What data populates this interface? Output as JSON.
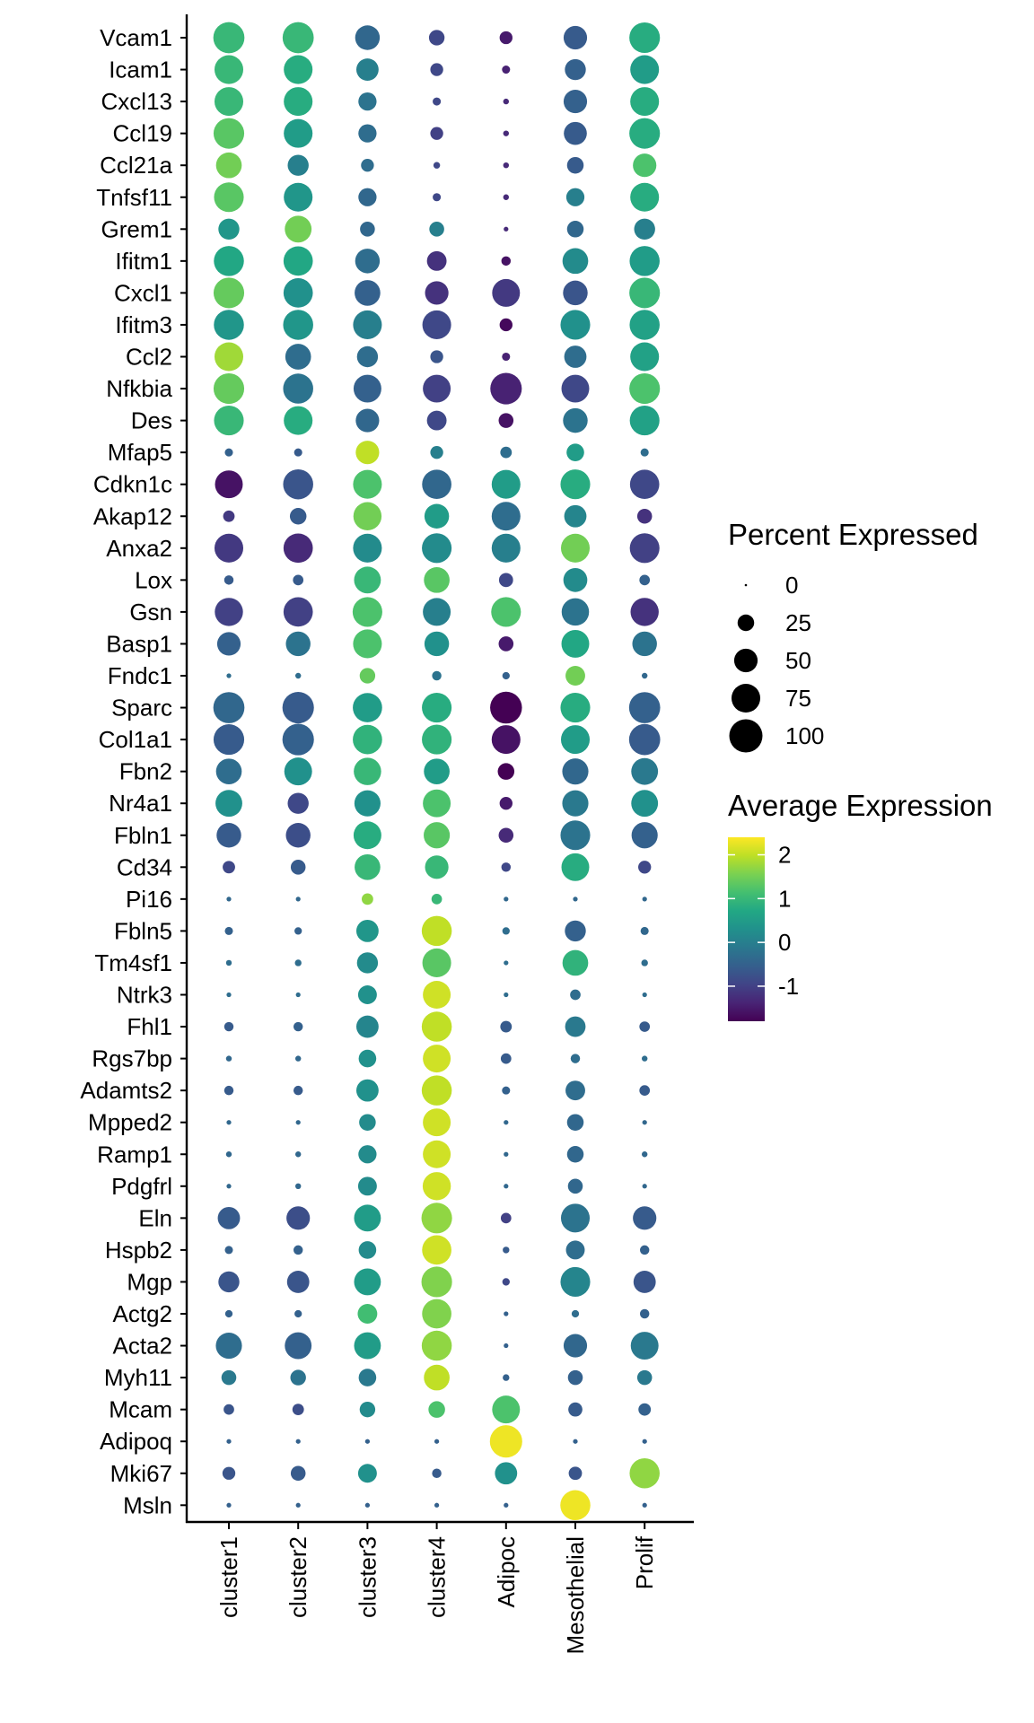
{
  "chart_data": {
    "type": "dotplot",
    "title": "",
    "xlabel": "",
    "ylabel": "",
    "clusters": [
      "cluster1",
      "cluster2",
      "cluster3",
      "cluster4",
      "Adipoc",
      "Mesothelial",
      "Prolif"
    ],
    "genes": [
      "Vcam1",
      "Icam1",
      "Cxcl13",
      "Ccl19",
      "Ccl21a",
      "Tnfsf11",
      "Grem1",
      "Ifitm1",
      "Cxcl1",
      "Ifitm3",
      "Ccl2",
      "Nfkbia",
      "Des",
      "Mfap5",
      "Cdkn1c",
      "Akap12",
      "Anxa2",
      "Lox",
      "Gsn",
      "Basp1",
      "Fndc1",
      "Sparc",
      "Col1a1",
      "Fbn2",
      "Nr4a1",
      "Fbln1",
      "Cd34",
      "Pi16",
      "Fbln5",
      "Tm4sf1",
      "Ntrk3",
      "Fhl1",
      "Rgs7bp",
      "Adamts2",
      "Mpped2",
      "Ramp1",
      "Pdgfrl",
      "Eln",
      "Hspb2",
      "Mgp",
      "Actg2",
      "Acta2",
      "Myh11",
      "Mcam",
      "Adipoq",
      "Mki67",
      "Msln"
    ],
    "percent_expressed": [
      [
        88,
        88,
        55,
        22,
        15,
        50,
        85
      ],
      [
        75,
        75,
        45,
        15,
        6,
        40,
        75
      ],
      [
        75,
        75,
        30,
        6,
        3,
        50,
        75
      ],
      [
        85,
        75,
        30,
        15,
        3,
        48,
        85
      ],
      [
        60,
        40,
        15,
        4,
        3,
        25,
        50
      ],
      [
        80,
        75,
        30,
        6,
        3,
        30,
        75
      ],
      [
        40,
        65,
        20,
        20,
        2,
        25,
        40
      ],
      [
        82,
        78,
        55,
        35,
        8,
        60,
        82
      ],
      [
        85,
        78,
        60,
        50,
        70,
        55,
        85
      ],
      [
        82,
        82,
        75,
        75,
        15,
        80,
        82
      ],
      [
        75,
        60,
        40,
        15,
        6,
        45,
        75
      ],
      [
        85,
        82,
        70,
        70,
        90,
        70,
        85
      ],
      [
        80,
        75,
        50,
        35,
        20,
        55,
        80
      ],
      [
        6,
        6,
        50,
        15,
        12,
        28,
        6
      ],
      [
        70,
        82,
        75,
        78,
        75,
        80,
        78
      ],
      [
        12,
        25,
        72,
        55,
        75,
        45,
        20
      ],
      [
        75,
        78,
        75,
        80,
        75,
        75,
        80
      ],
      [
        8,
        10,
        65,
        60,
        18,
        52,
        10
      ],
      [
        72,
        78,
        80,
        70,
        80,
        68,
        72
      ],
      [
        50,
        55,
        75,
        55,
        20,
        70,
        55
      ],
      [
        2,
        3,
        22,
        8,
        5,
        35,
        3
      ],
      [
        88,
        90,
        78,
        80,
        92,
        80,
        88
      ],
      [
        85,
        90,
        78,
        80,
        75,
        75,
        88
      ],
      [
        60,
        70,
        68,
        60,
        25,
        62,
        65
      ],
      [
        65,
        40,
        62,
        70,
        15,
        62,
        65
      ],
      [
        55,
        55,
        70,
        62,
        20,
        80,
        62
      ],
      [
        14,
        20,
        60,
        50,
        8,
        70,
        15
      ],
      [
        2,
        2,
        12,
        10,
        2,
        2,
        2
      ],
      [
        6,
        5,
        45,
        82,
        5,
        40,
        6
      ],
      [
        3,
        4,
        40,
        75,
        2,
        60,
        4
      ],
      [
        2,
        2,
        32,
        70,
        2,
        10,
        2
      ],
      [
        8,
        8,
        45,
        82,
        12,
        38,
        10
      ],
      [
        3,
        3,
        28,
        70,
        10,
        8,
        3
      ],
      [
        8,
        8,
        45,
        82,
        6,
        35,
        10
      ],
      [
        2,
        2,
        25,
        70,
        2,
        25,
        2
      ],
      [
        3,
        3,
        30,
        70,
        2,
        25,
        3
      ],
      [
        2,
        3,
        32,
        72,
        2,
        20,
        2
      ],
      [
        45,
        50,
        65,
        85,
        10,
        75,
        50
      ],
      [
        6,
        8,
        28,
        78,
        4,
        32,
        8
      ],
      [
        40,
        45,
        65,
        85,
        5,
        80,
        45
      ],
      [
        5,
        5,
        35,
        78,
        2,
        5,
        8
      ],
      [
        62,
        65,
        65,
        82,
        2,
        50,
        70
      ],
      [
        20,
        22,
        28,
        60,
        4,
        20,
        20
      ],
      [
        10,
        12,
        22,
        25,
        70,
        18,
        14
      ],
      [
        2,
        2,
        2,
        2,
        95,
        2,
        2
      ],
      [
        15,
        20,
        32,
        8,
        45,
        16,
        82
      ],
      [
        2,
        2,
        2,
        2,
        2,
        82,
        2
      ]
    ],
    "avg_expression": [
      [
        1.0,
        1.0,
        -0.4,
        -0.9,
        -1.5,
        -0.6,
        0.8
      ],
      [
        1.0,
        0.8,
        0.0,
        -0.9,
        -1.4,
        -0.5,
        0.5
      ],
      [
        1.0,
        0.8,
        -0.2,
        -0.9,
        -1.3,
        -0.5,
        0.8
      ],
      [
        1.3,
        0.5,
        -0.3,
        -1.0,
        -1.3,
        -0.6,
        0.8
      ],
      [
        1.5,
        0.0,
        -0.3,
        -0.9,
        -1.3,
        -0.6,
        1.2
      ],
      [
        1.3,
        0.4,
        -0.4,
        -0.9,
        -1.3,
        0.0,
        0.8
      ],
      [
        0.4,
        1.5,
        -0.4,
        0.0,
        -1.3,
        -0.4,
        0.0
      ],
      [
        0.7,
        0.7,
        -0.3,
        -1.2,
        -1.6,
        0.2,
        0.5
      ],
      [
        1.4,
        0.3,
        -0.5,
        -1.2,
        -1.1,
        -0.7,
        1.0
      ],
      [
        0.4,
        0.4,
        0.0,
        -0.9,
        -1.7,
        0.3,
        0.6
      ],
      [
        1.8,
        -0.3,
        -0.3,
        -0.7,
        -1.4,
        -0.3,
        0.6
      ],
      [
        1.4,
        -0.2,
        -0.5,
        -1.0,
        -1.4,
        -0.9,
        1.2
      ],
      [
        1.0,
        0.8,
        -0.4,
        -0.9,
        -1.6,
        -0.2,
        0.6
      ],
      [
        -0.5,
        -0.6,
        2.0,
        0.0,
        -0.3,
        0.5,
        -0.3
      ],
      [
        -1.6,
        -0.7,
        1.2,
        -0.4,
        0.5,
        0.8,
        -0.9
      ],
      [
        -1.1,
        -0.6,
        1.5,
        0.5,
        -0.3,
        0.1,
        -1.2
      ],
      [
        -1.1,
        -1.3,
        0.2,
        0.2,
        0.0,
        1.5,
        -1.0
      ],
      [
        -0.6,
        -0.6,
        1.0,
        1.3,
        -0.9,
        0.2,
        -0.5
      ],
      [
        -1.0,
        -1.0,
        1.2,
        0.0,
        1.2,
        -0.2,
        -1.2
      ],
      [
        -0.5,
        -0.2,
        1.2,
        0.3,
        -1.5,
        0.7,
        -0.2
      ],
      [
        -0.3,
        -0.3,
        1.4,
        -0.2,
        -0.5,
        1.5,
        -0.4
      ],
      [
        -0.4,
        -0.6,
        0.5,
        0.8,
        -1.8,
        0.8,
        -0.5
      ],
      [
        -0.6,
        -0.5,
        0.9,
        0.9,
        -1.6,
        0.5,
        -0.6
      ],
      [
        -0.3,
        0.3,
        1.0,
        0.5,
        -1.8,
        -0.4,
        -0.1
      ],
      [
        0.3,
        -0.9,
        0.3,
        1.2,
        -1.5,
        -0.1,
        0.3
      ],
      [
        -0.6,
        -0.8,
        0.8,
        1.3,
        -1.3,
        -0.2,
        -0.5
      ],
      [
        -0.9,
        -0.6,
        1.0,
        1.0,
        -0.9,
        0.8,
        -0.9
      ],
      [
        -0.4,
        -0.4,
        1.7,
        1.0,
        -0.4,
        -0.4,
        -0.4
      ],
      [
        -0.5,
        -0.5,
        0.4,
        2.0,
        -0.3,
        -0.5,
        -0.4
      ],
      [
        -0.3,
        -0.3,
        0.2,
        1.3,
        -0.3,
        0.9,
        -0.3
      ],
      [
        -0.3,
        -0.3,
        0.3,
        2.1,
        -0.3,
        -0.3,
        -0.3
      ],
      [
        -0.6,
        -0.5,
        0.1,
        2.0,
        -0.6,
        -0.1,
        -0.6
      ],
      [
        -0.4,
        -0.4,
        0.3,
        2.1,
        -0.6,
        -0.3,
        -0.3
      ],
      [
        -0.6,
        -0.6,
        0.3,
        2.0,
        -0.5,
        -0.3,
        -0.6
      ],
      [
        -0.4,
        -0.4,
        0.2,
        2.1,
        -0.4,
        -0.4,
        -0.4
      ],
      [
        -0.4,
        -0.4,
        0.2,
        2.1,
        -0.4,
        -0.4,
        -0.4
      ],
      [
        -0.4,
        -0.4,
        0.2,
        2.1,
        -0.4,
        -0.4,
        -0.4
      ],
      [
        -0.6,
        -0.8,
        0.5,
        1.7,
        -1.0,
        -0.2,
        -0.6
      ],
      [
        -0.5,
        -0.5,
        0.2,
        2.1,
        -0.6,
        -0.3,
        -0.5
      ],
      [
        -0.7,
        -0.7,
        0.5,
        1.6,
        -0.9,
        0.1,
        -0.7
      ],
      [
        -0.5,
        -0.5,
        1.1,
        1.6,
        -0.5,
        -0.3,
        -0.5
      ],
      [
        -0.3,
        -0.5,
        0.5,
        1.7,
        -0.5,
        -0.4,
        -0.1
      ],
      [
        -0.1,
        -0.2,
        -0.1,
        2.0,
        -0.5,
        -0.5,
        -0.1
      ],
      [
        -0.7,
        -0.8,
        0.2,
        1.2,
        1.2,
        -0.6,
        -0.5
      ],
      [
        -0.5,
        -0.5,
        -0.5,
        -0.5,
        2.3,
        -0.5,
        -0.5
      ],
      [
        -0.7,
        -0.6,
        0.3,
        -0.6,
        0.3,
        -0.7,
        1.7
      ],
      [
        -0.5,
        -0.5,
        -0.5,
        -0.5,
        -0.5,
        2.3,
        -0.5
      ]
    ],
    "color_range": [
      -1.8,
      2.4
    ],
    "size_range": [
      0,
      100
    ],
    "legend_size": {
      "title": "Percent Expressed",
      "ticks": [
        0,
        25,
        50,
        75,
        100
      ],
      "tick_labels": [
        "0",
        "25",
        "50",
        "75",
        "100"
      ]
    },
    "legend_color": {
      "title": "Average Expression",
      "ticks": [
        2,
        1,
        0,
        -1
      ],
      "tick_labels": [
        "2",
        "1",
        "0",
        "-1"
      ],
      "palette": "viridis"
    },
    "legend_position": "right"
  },
  "colors": {
    "viridis": [
      "#440154",
      "#482475",
      "#414487",
      "#355f8d",
      "#2a788e",
      "#21918c",
      "#22a884",
      "#44bf70",
      "#7ad151",
      "#bddf26",
      "#fde725"
    ]
  }
}
